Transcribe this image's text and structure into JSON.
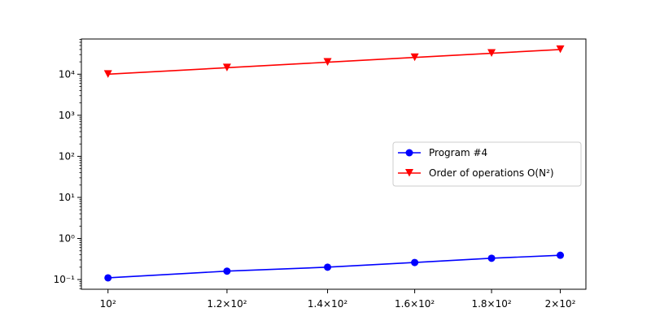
{
  "chart_data": {
    "type": "line",
    "xscale": "log",
    "yscale": "log",
    "xlim": [
      96,
      208
    ],
    "ylim": [
      0.058,
      72000
    ],
    "grid": false,
    "legend_position": "center-right",
    "x_ticks": [
      {
        "value": 100,
        "label": "10²"
      },
      {
        "value": 120,
        "label": "1.2×10²"
      },
      {
        "value": 140,
        "label": "1.4×10²"
      },
      {
        "value": 160,
        "label": "1.6×10²"
      },
      {
        "value": 180,
        "label": "1.8×10²"
      },
      {
        "value": 200,
        "label": "2×10²"
      }
    ],
    "y_ticks": [
      {
        "value": 0.1,
        "label": "10⁻¹"
      },
      {
        "value": 1,
        "label": "10⁰"
      },
      {
        "value": 10,
        "label": "10¹"
      },
      {
        "value": 100,
        "label": "10²"
      },
      {
        "value": 1000,
        "label": "10³"
      },
      {
        "value": 10000,
        "label": "10⁴"
      }
    ],
    "x": [
      100,
      120,
      140,
      160,
      180,
      200
    ],
    "series": [
      {
        "name": "Program #4",
        "color": "#0000ff",
        "marker": "circle",
        "values": [
          0.11,
          0.16,
          0.2,
          0.26,
          0.33,
          0.39
        ]
      },
      {
        "name": "Order of operations O(N²)",
        "color": "#ff0000",
        "marker": "triangle-down",
        "values": [
          10000,
          14400,
          19600,
          25600,
          32400,
          40000
        ]
      }
    ]
  }
}
